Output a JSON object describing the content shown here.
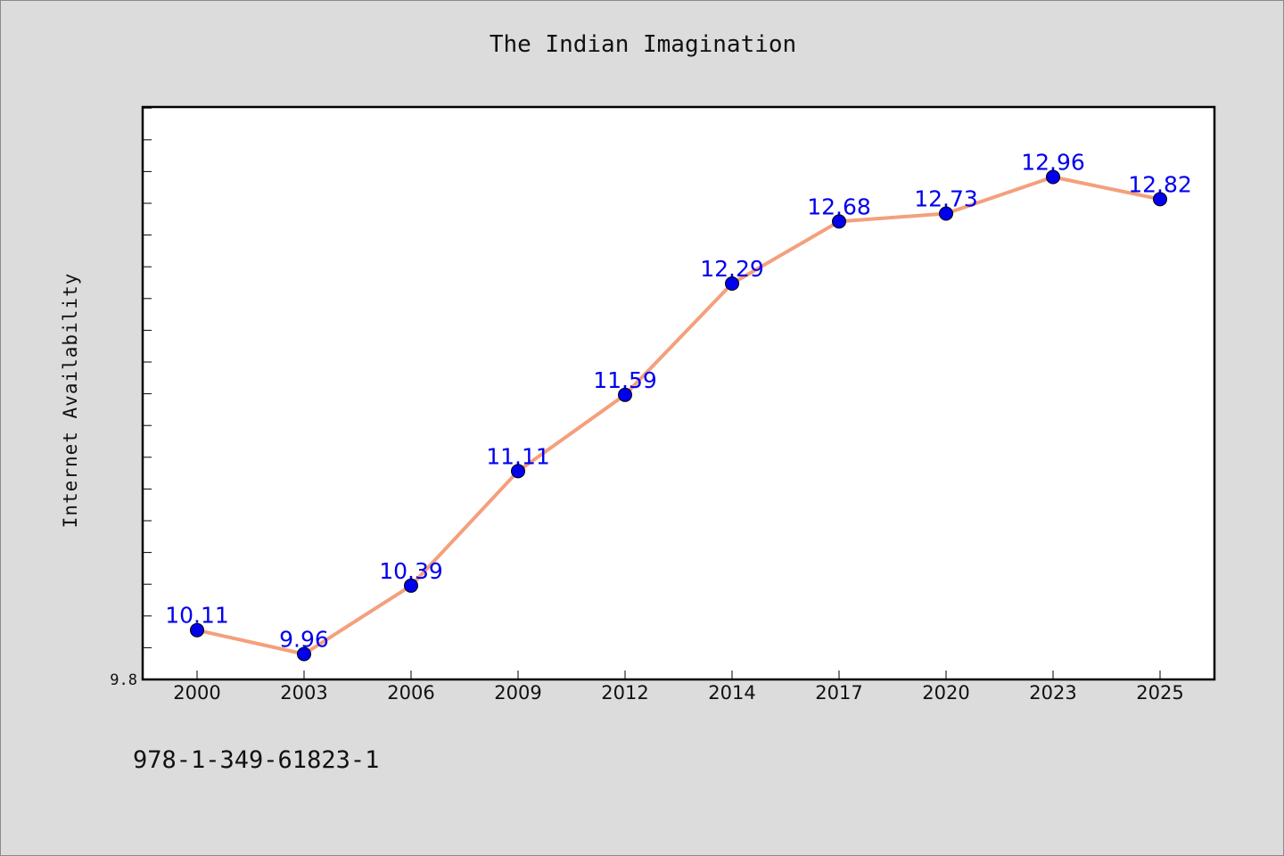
{
  "chart_data": {
    "type": "line",
    "title": "The Indian Imagination",
    "xlabel": "",
    "ylabel": "Internet Availability",
    "categories": [
      "2000",
      "2003",
      "2006",
      "2009",
      "2012",
      "2014",
      "2017",
      "2020",
      "2023",
      "2025"
    ],
    "series": [
      {
        "values": [
          10.11,
          9.96,
          10.39,
          11.11,
          11.59,
          12.29,
          12.68,
          12.73,
          12.96,
          12.82
        ]
      }
    ],
    "ylim": [
      9.8,
      13.4
    ],
    "yticks_labeled": [
      "9.8"
    ],
    "legend": "none",
    "grid": false,
    "colors": {
      "line": "#f4a07c",
      "marker": "#0000ee",
      "data_label": "#0000ee",
      "plot_background": "#ffffff",
      "figure_background": "#dcdcdc"
    }
  },
  "footer": {
    "isbn": "978-1-349-61823-1"
  }
}
